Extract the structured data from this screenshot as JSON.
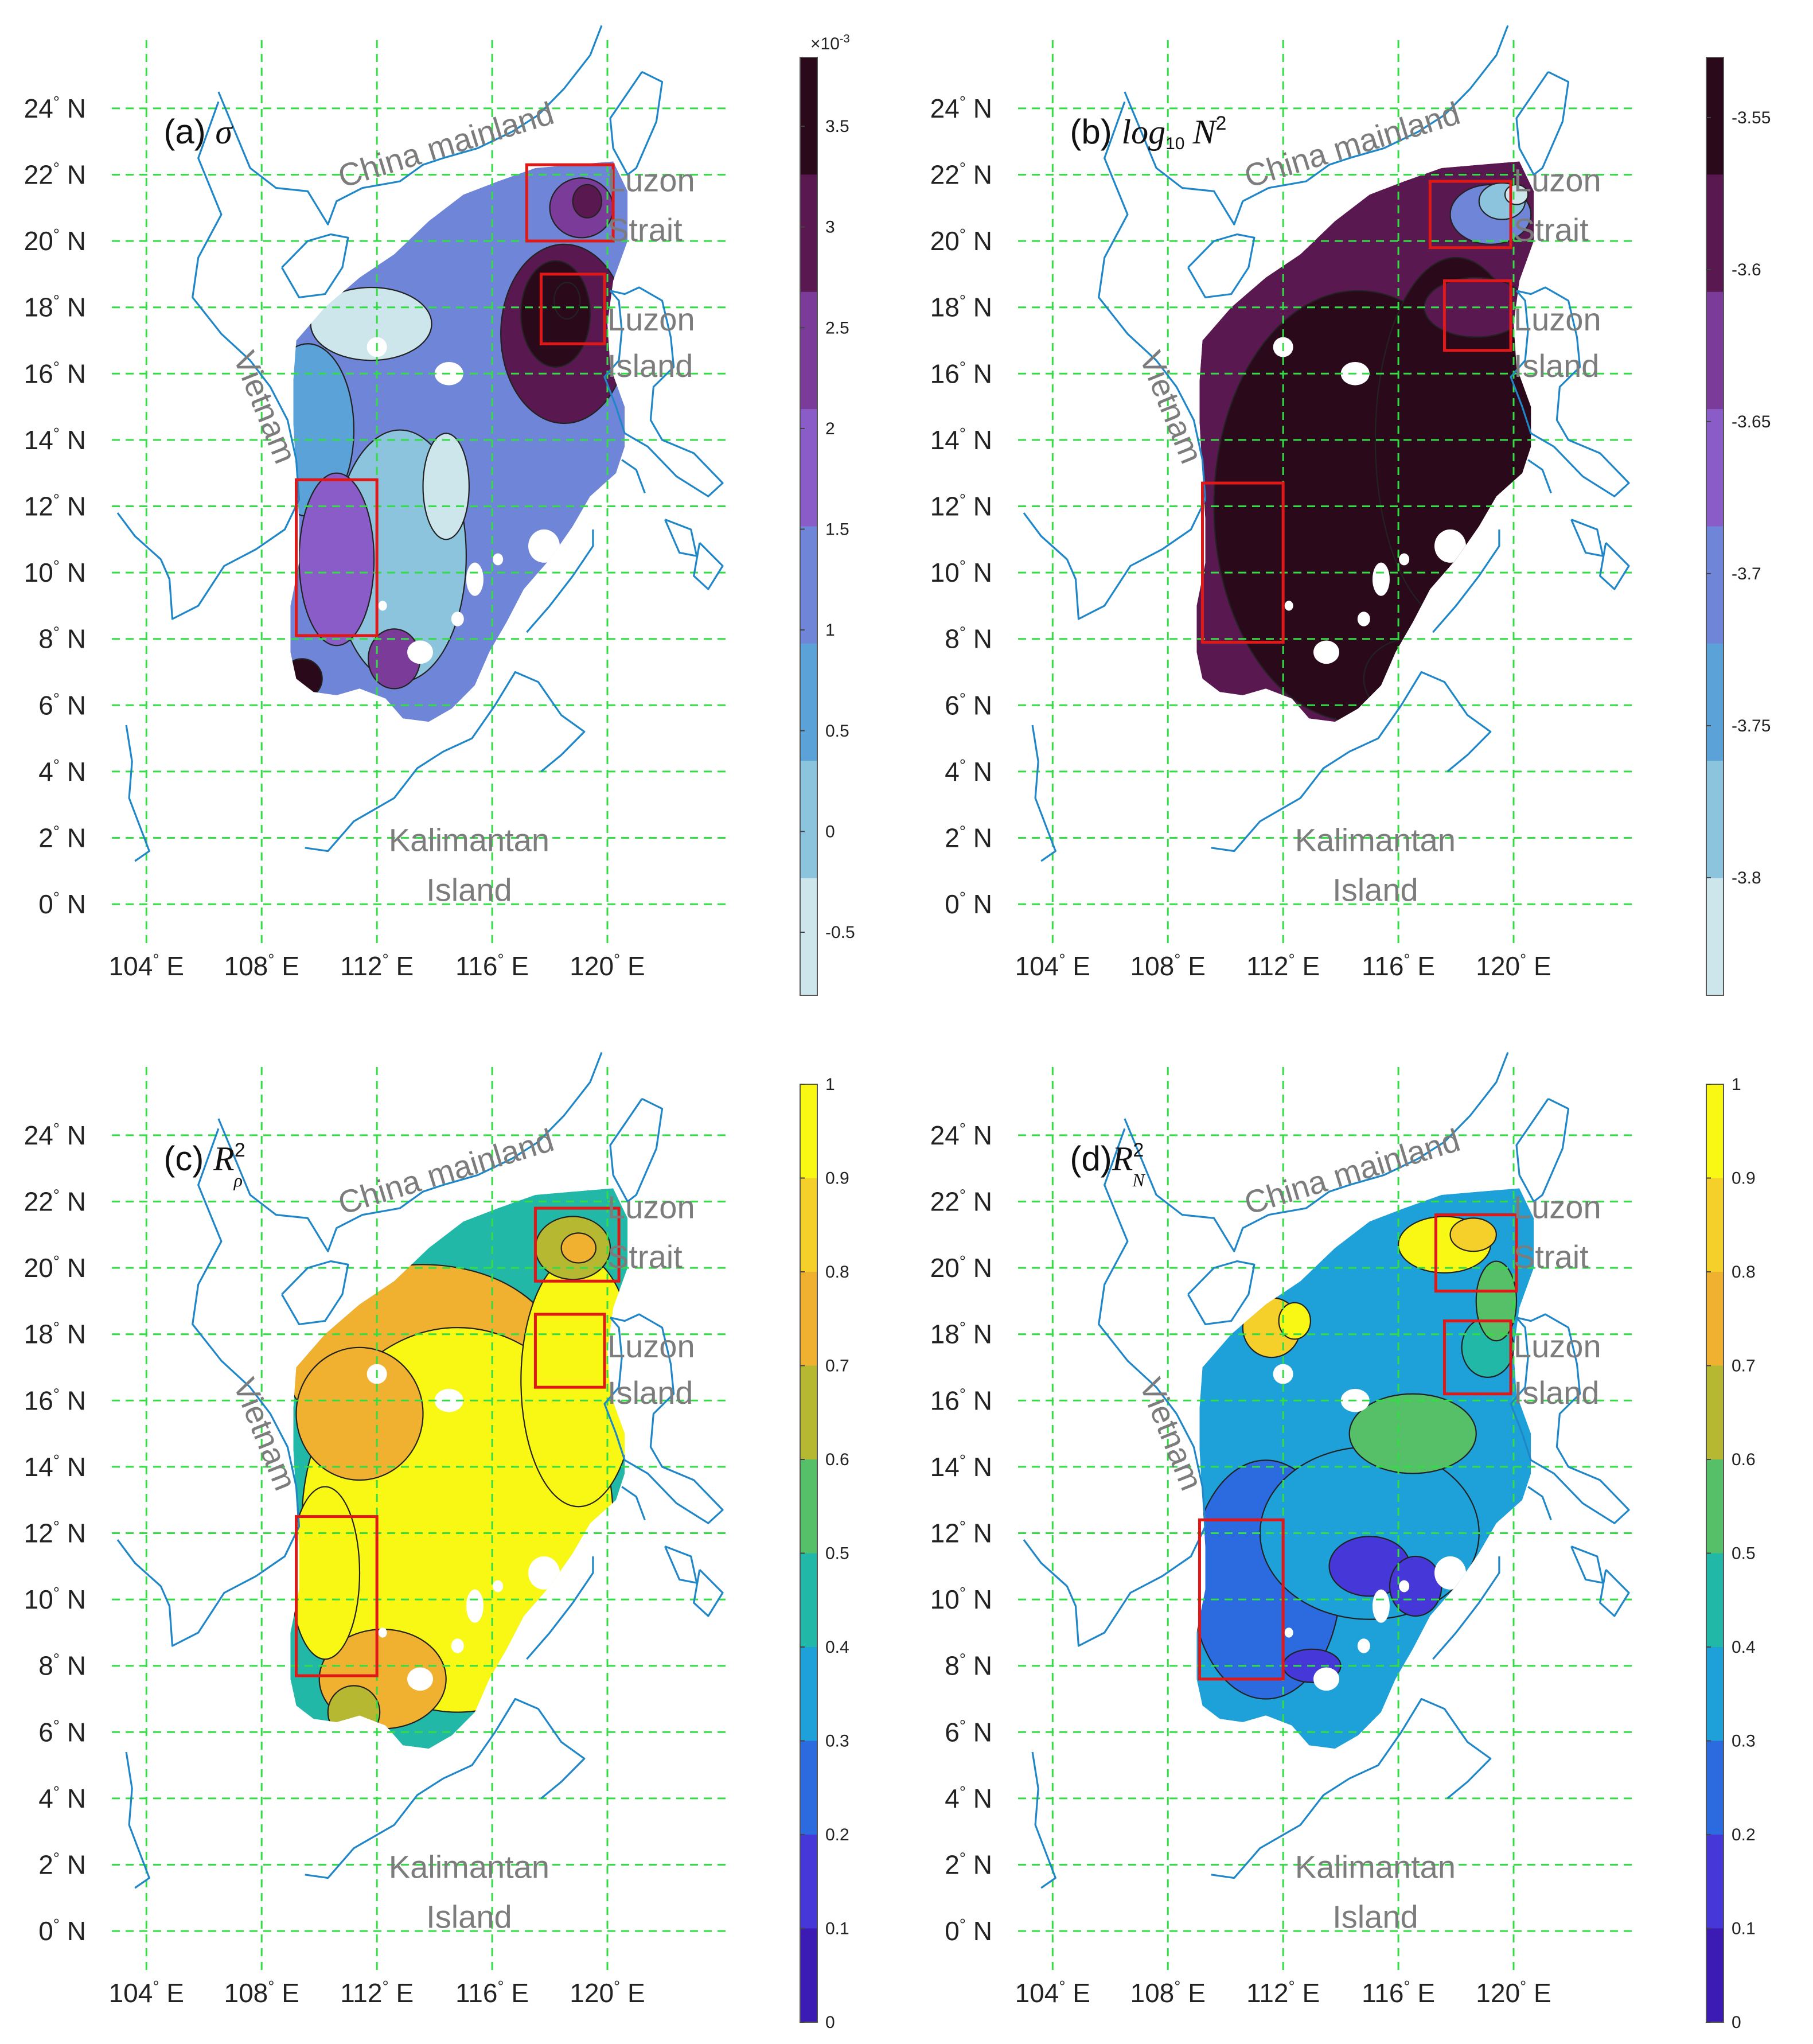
{
  "panels": [
    {
      "id": "a",
      "title_prefix": "(a) ",
      "title_math": "σ",
      "title_sub": "",
      "colorbar": {
        "ticks": [
          "3.5",
          "3",
          "2.5",
          "2",
          "1.5",
          "1",
          "0.5",
          "0",
          "-0.5"
        ],
        "multiplier": "×10",
        "multiplier_exp": "-3",
        "colors": [
          "#2a0a1a",
          "#5a1850",
          "#7a3c98",
          "#8a5cc8",
          "#6f86d8",
          "#5aa2d8",
          "#8cc4de",
          "#cde6ec"
        ]
      }
    },
    {
      "id": "b",
      "title_prefix": "(b) ",
      "title_math": "log",
      "title_sub": "10",
      "title_math2": "N",
      "title_sup": "2",
      "colorbar": {
        "ticks": [
          "-3.55",
          "-3.6",
          "-3.65",
          "-3.7",
          "-3.75",
          "-3.8"
        ],
        "colors": [
          "#2a0a1a",
          "#5a1850",
          "#7a3c98",
          "#8a5cc8",
          "#6f86d8",
          "#5aa2d8",
          "#8cc4de",
          "#cde6ec"
        ]
      }
    },
    {
      "id": "c",
      "title_prefix": "(c) ",
      "title_math": "R",
      "title_sup": "2",
      "title_sub": "ρ",
      "colorbar": {
        "ticks": [
          "1",
          "0.9",
          "0.8",
          "0.7",
          "0.6",
          "0.5",
          "0.4",
          "0.3",
          "0.2",
          "0.1",
          "0"
        ],
        "colors": [
          "#f8f814",
          "#f5cf2a",
          "#f0b030",
          "#b5b830",
          "#56c068",
          "#22b8a8",
          "#1ea0d8",
          "#2c6ae0",
          "#4638d8",
          "#3c1ab4"
        ]
      }
    },
    {
      "id": "d",
      "title_prefix": "(d)",
      "title_math": "R",
      "title_sup": "2",
      "title_sub": "N",
      "colorbar": {
        "ticks": [
          "1",
          "0.9",
          "0.8",
          "0.7",
          "0.6",
          "0.5",
          "0.4",
          "0.3",
          "0.2",
          "0.1",
          "0"
        ],
        "colors": [
          "#f8f814",
          "#f5cf2a",
          "#f0b030",
          "#b5b830",
          "#56c068",
          "#22b8a8",
          "#1ea0d8",
          "#2c6ae0",
          "#4638d8",
          "#3c1ab4"
        ]
      }
    }
  ],
  "lat_labels": [
    "24",
    "22",
    "20",
    "18",
    "16",
    "14",
    "12",
    "10",
    "8",
    "6",
    "4",
    "2",
    "0"
  ],
  "lat_suffix": "N",
  "lon_labels": [
    "104",
    "108",
    "112",
    "116",
    "120"
  ],
  "lon_suffix": "E",
  "places": {
    "china": "China mainland",
    "luzon_strait_1": "Luzon",
    "luzon_strait_2": "Strait",
    "luzon_island_1": "Luzon",
    "luzon_island_2": "Island",
    "vietnam": "Vietnam",
    "kalimantan_1": "Kalimantan",
    "kalimantan_2": "Island"
  },
  "colors": {
    "grid": "#33dd44",
    "coast": "#1f86c8",
    "box": "#e01818",
    "place_text": "#7c7c7c"
  }
}
